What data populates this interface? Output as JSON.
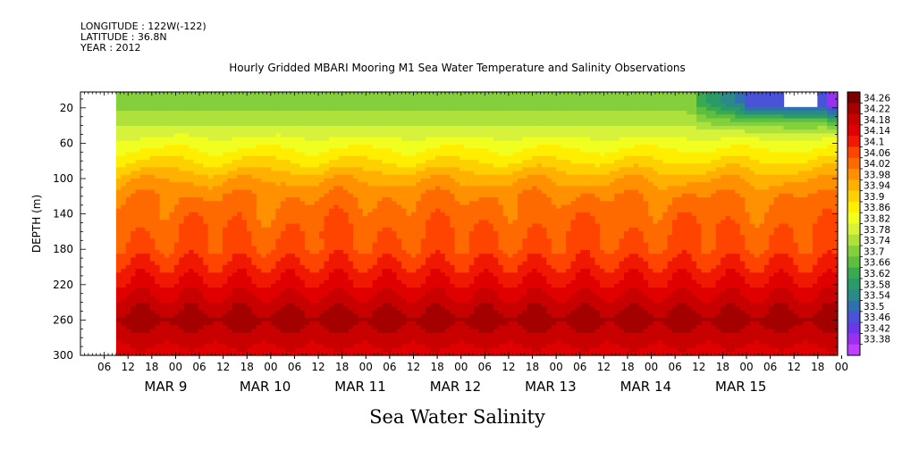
{
  "header": {
    "longitude": "LONGITUDE : 122W(-122)",
    "latitude": "LATITUDE : 36.8N",
    "year": "YEAR : 2012"
  },
  "chart_data": {
    "type": "heatmap",
    "title": "Hourly Gridded MBARI Mooring M1 Sea Water Temperature and Salinity Observations",
    "xlabel": "Sea Water Salinity",
    "ylabel": "DEPTH (m)",
    "x_start": "2012-03-08T00:00",
    "x_end": "2012-03-15T23:00",
    "data_start": "2012-03-08T09:00",
    "hour_ticks": [
      "06",
      "12",
      "18",
      "00",
      "06",
      "12",
      "18",
      "00",
      "06",
      "12",
      "18",
      "00",
      "06",
      "12",
      "18",
      "00",
      "06",
      "12",
      "18",
      "00",
      "06",
      "12",
      "18",
      "00",
      "06",
      "12",
      "18",
      "00",
      "06",
      "12",
      "18",
      "00"
    ],
    "day_labels": [
      "MAR  9",
      "MAR 10",
      "MAR 11",
      "MAR 12",
      "MAR 13",
      "MAR 14",
      "MAR 15"
    ],
    "ylim": [
      300,
      2
    ],
    "y_ticks": [
      20,
      60,
      100,
      140,
      180,
      220,
      260,
      300
    ],
    "missing_region": {
      "time_from": "2012-03-15T09:00",
      "time_to": "2012-03-15T18:00",
      "depth_from": 2,
      "depth_to": 20
    },
    "profile": [
      {
        "depth": 10,
        "salinity": 33.71
      },
      {
        "depth": 20,
        "salinity": 33.73
      },
      {
        "depth": 40,
        "salinity": 33.78
      },
      {
        "depth": 60,
        "salinity": 33.84
      },
      {
        "depth": 80,
        "salinity": 33.9
      },
      {
        "depth": 100,
        "salinity": 33.97
      },
      {
        "depth": 120,
        "salinity": 34.02
      },
      {
        "depth": 140,
        "salinity": 34.04
      },
      {
        "depth": 160,
        "salinity": 34.06
      },
      {
        "depth": 180,
        "salinity": 34.07
      },
      {
        "depth": 200,
        "salinity": 34.11
      },
      {
        "depth": 220,
        "salinity": 34.15
      },
      {
        "depth": 240,
        "salinity": 34.2
      },
      {
        "depth": 260,
        "salinity": 34.24
      },
      {
        "depth": 280,
        "salinity": 34.2
      },
      {
        "depth": 300,
        "salinity": 34.16
      }
    ],
    "late_surface_freshening": [
      {
        "time": "2012-03-14T06:00",
        "depth": 20,
        "salinity": 33.7
      },
      {
        "time": "2012-03-14T12:00",
        "depth": 20,
        "salinity": 33.52
      },
      {
        "time": "2012-03-15T00:00",
        "depth": 20,
        "salinity": 33.48
      },
      {
        "time": "2012-03-15T20:00",
        "depth": 20,
        "salinity": 33.4
      },
      {
        "time": "2012-03-15T12:00",
        "depth": 40,
        "salinity": 33.62
      }
    ],
    "colorbar": {
      "levels": [
        "34.26",
        "34.22",
        "34.18",
        "34.14",
        "34.1",
        "34.06",
        "34.02",
        "33.98",
        "33.94",
        "33.9",
        "33.86",
        "33.82",
        "33.78",
        "33.74",
        "33.7",
        "33.66",
        "33.62",
        "33.58",
        "33.54",
        "33.5",
        "33.46",
        "33.42",
        "33.38"
      ],
      "colors": [
        "#7a0000",
        "#a40000",
        "#c80000",
        "#e00000",
        "#f01800",
        "#ff4400",
        "#ff6a00",
        "#ff9000",
        "#ffb000",
        "#ffd000",
        "#ffee00",
        "#f0ff20",
        "#d6f23a",
        "#aee23a",
        "#84d03c",
        "#5cbf40",
        "#3aaa50",
        "#2a9a68",
        "#2a8a88",
        "#3070b0",
        "#4a52d8",
        "#6a38e8",
        "#9a30f0",
        "#c040ff"
      ]
    }
  }
}
